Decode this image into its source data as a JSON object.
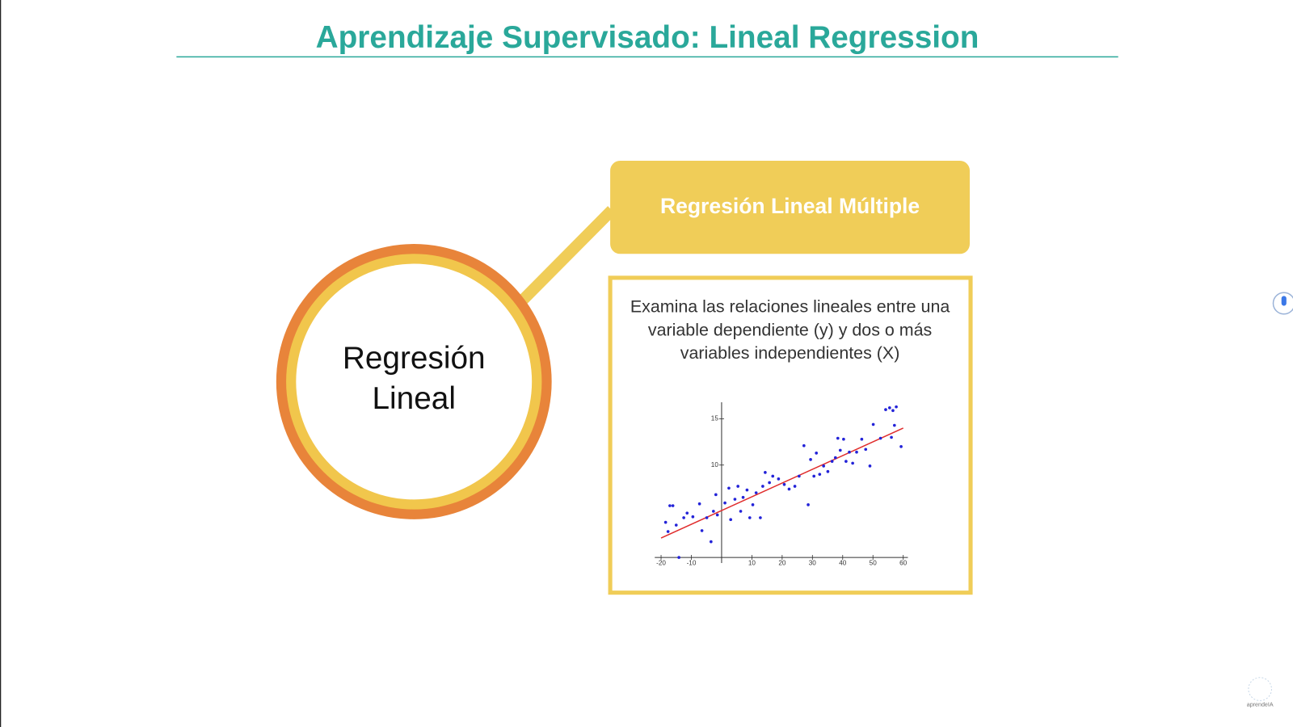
{
  "header": {
    "title": "Aprendizaje Supervisado: Lineal Regression"
  },
  "circle": {
    "label": "Regresión Lineal"
  },
  "box": {
    "title": "Regresión Lineal Múltiple",
    "description": "Examina las relaciones lineales entre una variable dependiente (y) y dos o más variables independientes (X)"
  },
  "logo": {
    "label": "aprendeIA"
  },
  "chart_data": {
    "type": "scatter",
    "x": [
      -18.5,
      -17.1,
      -16.1,
      -17.7,
      -15,
      -14.1,
      -12.5,
      -11.4,
      -9.5,
      -7.3,
      -6.5,
      -4.9,
      -3.5,
      -2.7,
      -1.9,
      -1.4,
      1.1,
      2.4,
      3.0,
      4.4,
      5.4,
      6.3,
      7.1,
      8.4,
      9.3,
      10.3,
      11.4,
      12.8,
      13.6,
      14.4,
      15.8,
      16.9,
      18.8,
      20.7,
      22.3,
      24.2,
      25.6,
      27.2,
      28.6,
      29.4,
      30.5,
      31.3,
      32.4,
      33.7,
      35.1,
      36.5,
      37.6,
      38.4,
      39.2,
      40.3,
      41.1,
      42.2,
      43.3,
      44.6,
      46.3,
      47.6,
      49.0,
      50.1,
      52.5,
      54.2,
      55.5,
      56.6,
      57.7,
      57.1,
      56.1,
      59.3
    ],
    "values": [
      3.8,
      5.6,
      5.6,
      2.8,
      3.5,
      0.0,
      4.3,
      4.8,
      4.4,
      5.8,
      2.9,
      4.3,
      1.7,
      5.0,
      6.8,
      4.6,
      5.9,
      7.5,
      4.1,
      6.3,
      7.7,
      5.0,
      6.5,
      7.3,
      4.3,
      5.7,
      7.0,
      4.3,
      7.7,
      9.2,
      8.1,
      8.8,
      8.5,
      7.9,
      7.4,
      7.7,
      8.8,
      12.1,
      5.7,
      10.6,
      8.8,
      11.3,
      9.0,
      9.9,
      9.3,
      10.4,
      10.8,
      12.9,
      11.6,
      12.8,
      10.4,
      11.4,
      10.2,
      11.4,
      12.8,
      11.7,
      9.9,
      14.4,
      12.9,
      16.0,
      16.2,
      15.9,
      16.3,
      14.3,
      13.0,
      12.0
    ],
    "color": "#2323d8",
    "fit": {
      "x": [
        -20,
        60
      ],
      "values": [
        2.1,
        14.0
      ],
      "color": "#e02c2c"
    },
    "xlim": [
      -21,
      61
    ],
    "ylim": [
      -0.6,
      16.8
    ],
    "xticks": [
      -20,
      -10,
      10,
      20,
      30,
      40,
      50,
      60
    ],
    "yticks": [
      10,
      15
    ]
  }
}
